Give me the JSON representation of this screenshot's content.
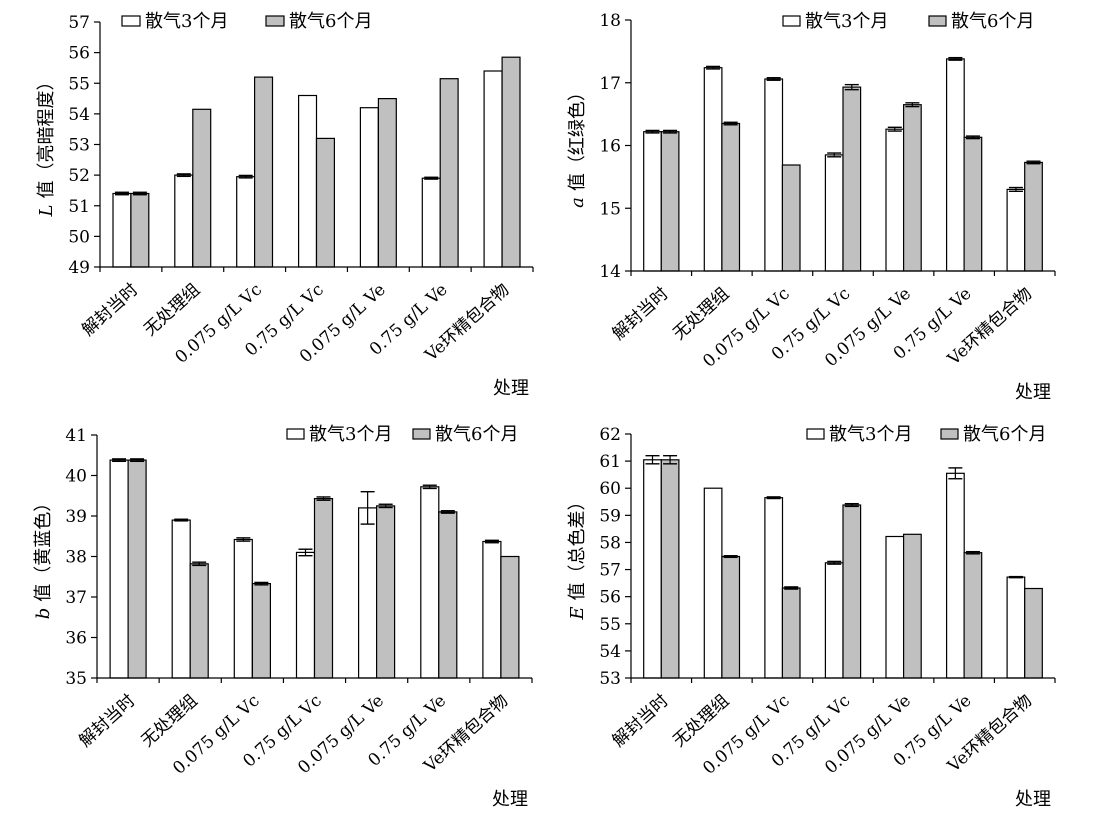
{
  "colors": {
    "series_3m": "#ffffff",
    "series_6m": "#c0c0c0",
    "axis": "#000000"
  },
  "chart_data": [
    {
      "type": "bar",
      "title": "",
      "xlabel": "处理",
      "ylabel": "L 值（亮暗程度）",
      "ylabel_var": "L",
      "ylabel_rest": "值（亮暗程度）",
      "ylim": [
        49,
        57
      ],
      "yticks": [
        49,
        50,
        51,
        52,
        53,
        54,
        55,
        56,
        57
      ],
      "grid": false,
      "legend": "top",
      "categories": [
        "解封当时",
        "无处理组",
        "0.075 g/L Vc",
        "0.75 g/L Vc",
        "0.075 g/L Ve",
        "0.75 g/L Ve",
        "Ve环精包合物"
      ],
      "series": [
        {
          "name": "散气3个月",
          "values": [
            51.4,
            52.0,
            51.95,
            54.6,
            54.2,
            51.9,
            55.4
          ],
          "errors": [
            0.04,
            0.04,
            0.04,
            0,
            0,
            0.03,
            0
          ]
        },
        {
          "name": "散气6个月",
          "values": [
            51.4,
            54.15,
            55.2,
            53.2,
            54.5,
            55.15,
            55.85
          ],
          "errors": [
            0.04,
            0,
            0,
            0,
            0,
            0,
            0
          ]
        }
      ]
    },
    {
      "type": "bar",
      "title": "",
      "xlabel": "处理",
      "ylabel": "a 值（红绿色）",
      "ylabel_var": "a",
      "ylabel_rest": "值（红绿色）",
      "ylim": [
        14,
        18
      ],
      "yticks": [
        14,
        15,
        16,
        17,
        18
      ],
      "grid": false,
      "legend": "top",
      "categories": [
        "解封当时",
        "无处理组",
        "0.075 g/L Vc",
        "0.75 g/L Vc",
        "0.075 g/L Ve",
        "0.75 g/L Ve",
        "Ve环精包合物"
      ],
      "series": [
        {
          "name": "散气3个月",
          "values": [
            16.22,
            17.24,
            17.06,
            15.85,
            16.26,
            17.38,
            15.3
          ],
          "errors": [
            0.02,
            0.02,
            0.02,
            0.03,
            0.03,
            0.02,
            0.03
          ]
        },
        {
          "name": "散气6个月",
          "values": [
            16.22,
            16.35,
            15.69,
            16.93,
            16.65,
            16.13,
            15.73
          ],
          "errors": [
            0.02,
            0.02,
            0,
            0.04,
            0.03,
            0.02,
            0.02
          ]
        }
      ]
    },
    {
      "type": "bar",
      "title": "",
      "xlabel": "处理",
      "ylabel": "b 值（黄蓝色）",
      "ylabel_var": "b",
      "ylabel_rest": "值（黄蓝色）",
      "ylim": [
        35,
        41
      ],
      "yticks": [
        35,
        36,
        37,
        38,
        39,
        40,
        41
      ],
      "grid": false,
      "legend": "top",
      "categories": [
        "解封当时",
        "无处理组",
        "0.075 g/L Vc",
        "0.75 g/L Vc",
        "0.075 g/L Ve",
        "0.75 g/L Ve",
        "Ve环精包合物"
      ],
      "series": [
        {
          "name": "散气3个月",
          "values": [
            40.38,
            38.9,
            38.42,
            38.1,
            39.2,
            39.72,
            38.37
          ],
          "errors": [
            0.03,
            0.02,
            0.04,
            0.08,
            0.4,
            0.04,
            0.03
          ]
        },
        {
          "name": "散气6个月",
          "values": [
            40.38,
            37.82,
            37.33,
            39.43,
            39.25,
            39.1,
            38.0
          ],
          "errors": [
            0.03,
            0.04,
            0.03,
            0.04,
            0.04,
            0.03,
            0
          ]
        }
      ]
    },
    {
      "type": "bar",
      "title": "",
      "xlabel": "处理",
      "ylabel": "E 值（总色差）",
      "ylabel_var": "E",
      "ylabel_rest": "值（总色差）",
      "ylim": [
        53,
        62
      ],
      "yticks": [
        53,
        54,
        55,
        56,
        57,
        58,
        59,
        60,
        61,
        62
      ],
      "grid": false,
      "legend": "top",
      "categories": [
        "解封当时",
        "无处理组",
        "0.075 g/L Vc",
        "0.75 g/L Vc",
        "0.075 g/L Ve",
        "0.75 g/L Ve",
        "Ve环精包合物"
      ],
      "series": [
        {
          "name": "散气3个月",
          "values": [
            61.05,
            60.0,
            59.65,
            57.25,
            58.22,
            60.55,
            56.72
          ],
          "errors": [
            0.15,
            0,
            0.03,
            0.05,
            0,
            0.2,
            0.02
          ]
        },
        {
          "name": "散气6个月",
          "values": [
            61.05,
            57.48,
            56.32,
            59.38,
            58.3,
            57.62,
            56.3
          ],
          "errors": [
            0.15,
            0.03,
            0.04,
            0.05,
            0,
            0.04,
            0
          ]
        }
      ]
    }
  ]
}
